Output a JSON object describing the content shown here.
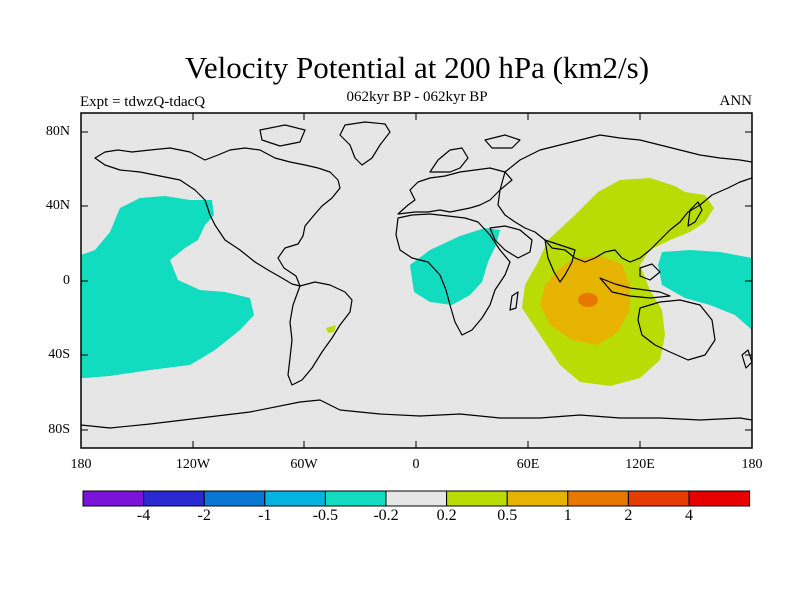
{
  "title": "Velocity Potential at 200 hPa (km2/s)",
  "subtitle": "062kyr BP - 062kyr BP",
  "left_label": "Expt = tdwzQ-tdacQ",
  "right_label": "ANN",
  "lat_ticks": [
    "80N",
    "40N",
    "0",
    "40S",
    "80S"
  ],
  "lon_ticks": [
    "180",
    "120W",
    "60W",
    "0",
    "60E",
    "120E",
    "180"
  ],
  "colorbar": {
    "colors": [
      "#7b14d8",
      "#2a2ad0",
      "#0a78d2",
      "#05b4e0",
      "#12dcc0",
      "#e6e6e6",
      "#b9dc05",
      "#e6b400",
      "#e67800",
      "#e63c00",
      "#e60000"
    ],
    "labels": [
      "-4",
      "-2",
      "-1",
      "-0.5",
      "-0.2",
      "0.2",
      "0.5",
      "1",
      "2",
      "4"
    ]
  },
  "map": {
    "background": "#e6e6e6",
    "negative_fill": "#12dcc0",
    "positive_fill_1": "#b9dc05",
    "positive_fill_2": "#e6b400",
    "positive_fill_3": "#e67800"
  }
}
